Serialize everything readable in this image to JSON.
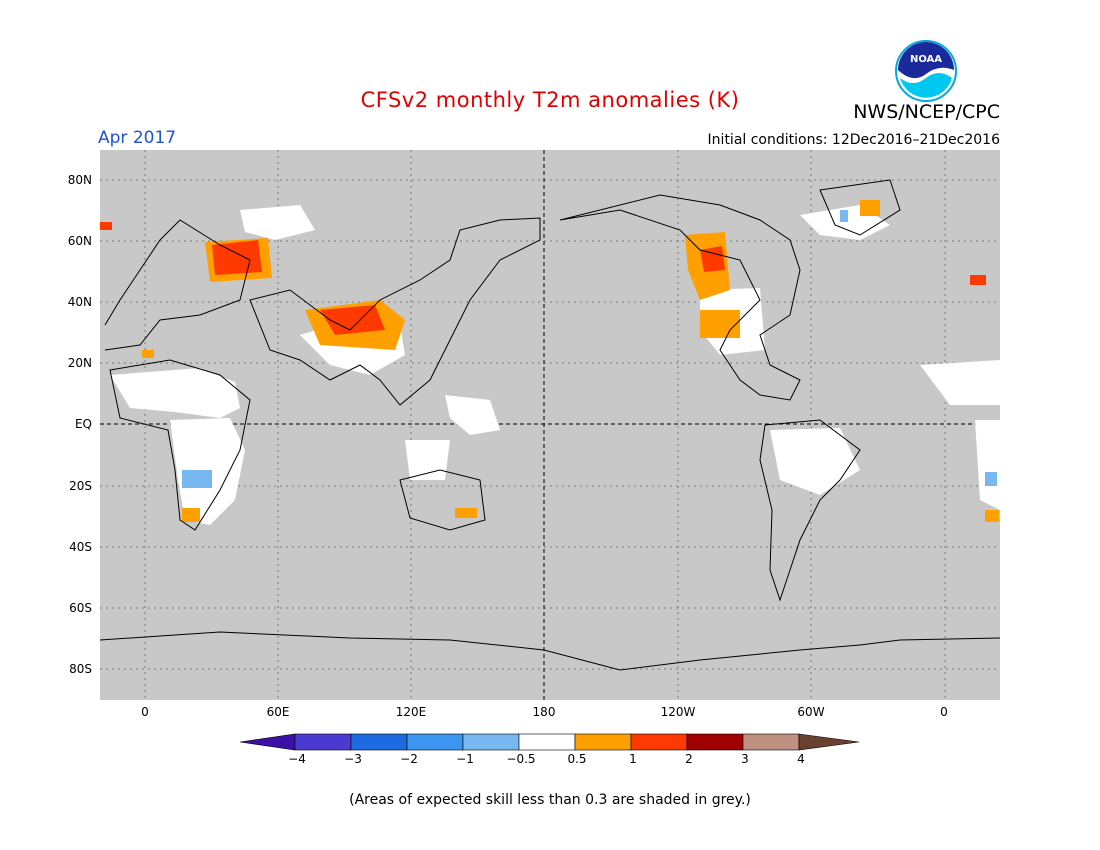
{
  "title": "CFSv2 monthly T2m anomalies (K)",
  "agency": "NWS/NCEP/CPC",
  "period": "Apr 2017",
  "initial_conditions": "Initial conditions: 12Dec2016–21Dec2016",
  "footnote": "(Areas of expected skill less than 0.3 are shaded in grey.)",
  "logo_text": "NOAA",
  "y_ticks": [
    "80N",
    "60N",
    "40N",
    "20N",
    "EQ",
    "20S",
    "40S",
    "60S",
    "80S"
  ],
  "x_ticks": [
    "0",
    "60E",
    "120E",
    "180",
    "120W",
    "60W",
    "0"
  ],
  "colorbar": {
    "labels": [
      "−4",
      "−3",
      "−2",
      "−1",
      "−0.5",
      "0.5",
      "1",
      "2",
      "3",
      "4"
    ],
    "colors": [
      "#3a10a8",
      "#4a3ad0",
      "#1e6ae0",
      "#3c96f0",
      "#78b8f0",
      "#ffffff",
      "#ffa000",
      "#ff3a00",
      "#a00000",
      "#c09080",
      "#6a4030"
    ]
  },
  "colors": {
    "land_no_skill": "#c8c8c8",
    "title_red": "#e00000",
    "period_blue": "#2050e0"
  }
}
